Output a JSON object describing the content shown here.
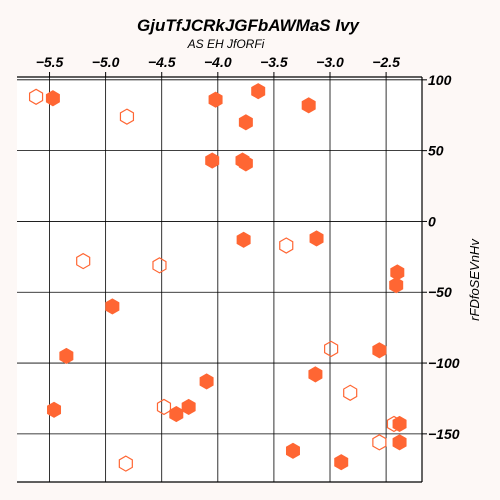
{
  "chart_data": {
    "type": "scatter",
    "title": "GjuTfJCRkJGFbAWMaS Ivy",
    "subtitle": "AS EH JfORFi",
    "xlabel": "",
    "ylabel": "rFDfoSEVnHv",
    "x_axis_position": "top",
    "y_axis_position": "right",
    "xlim": [
      -5.79,
      -2.18
    ],
    "ylim": [
      -184,
      102
    ],
    "x_ticks": [
      -5.5,
      -5.0,
      -4.5,
      -4.0,
      -3.5,
      -3.0,
      -2.5
    ],
    "x_tick_labels": [
      "−5.5",
      "−5.0",
      "−4.5",
      "−4.0",
      "−3.5",
      "−3.0",
      "−2.5"
    ],
    "y_ticks": [
      100,
      50,
      0,
      -50,
      -100,
      -150
    ],
    "y_tick_labels": [
      "100",
      "50",
      "0",
      "−50",
      "−100",
      "−150"
    ],
    "grid": true,
    "marker": "hexagon",
    "color": "#ff6633",
    "series": [
      {
        "style": "filled",
        "points": [
          [
            -5.47,
            87
          ],
          [
            -3.64,
            92
          ],
          [
            -4.02,
            86
          ],
          [
            -3.19,
            82
          ],
          [
            -3.75,
            70
          ],
          [
            -4.05,
            43
          ],
          [
            -3.78,
            43
          ],
          [
            -3.75,
            41
          ],
          [
            -3.77,
            -13
          ],
          [
            -3.12,
            -12
          ],
          [
            -2.4,
            -36
          ],
          [
            -2.41,
            -45
          ],
          [
            -4.94,
            -60
          ],
          [
            -5.35,
            -95
          ],
          [
            -2.56,
            -91
          ],
          [
            -3.13,
            -108
          ],
          [
            -4.1,
            -113
          ],
          [
            -4.26,
            -131
          ],
          [
            -4.37,
            -136
          ],
          [
            -5.46,
            -133
          ],
          [
            -2.38,
            -143
          ],
          [
            -2.38,
            -156
          ],
          [
            -3.33,
            -162
          ],
          [
            -2.9,
            -170
          ]
        ]
      },
      {
        "style": "hollow",
        "points": [
          [
            -5.62,
            88
          ],
          [
            -4.81,
            74
          ],
          [
            -3.39,
            -17
          ],
          [
            -5.2,
            -28
          ],
          [
            -4.52,
            -31
          ],
          [
            -2.99,
            -90
          ],
          [
            -2.82,
            -121
          ],
          [
            -4.48,
            -131
          ],
          [
            -2.43,
            -143
          ],
          [
            -2.56,
            -156
          ],
          [
            -4.82,
            -171
          ]
        ]
      }
    ]
  }
}
